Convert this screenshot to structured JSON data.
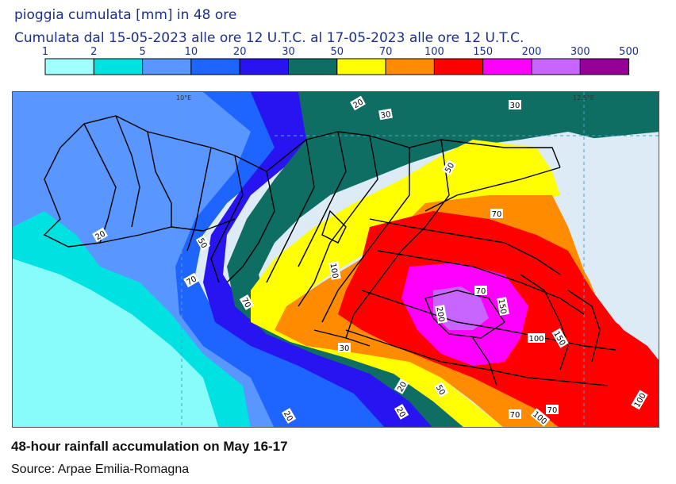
{
  "title": "pioggia cumulata [mm] in 48 ore",
  "subtitle": "Cumulata dal 15-05-2023 alle ore 12 U.T.C. al 17-05-2023 alle ore 12 U.T.C.",
  "legend": {
    "ticks": [
      "1",
      "2",
      "5",
      "10",
      "20",
      "30",
      "50",
      "70",
      "100",
      "150",
      "200",
      "300",
      "500"
    ],
    "colors": [
      "#a0ffff",
      "#00e1e1",
      "#5a96ff",
      "#1e64ff",
      "#2814f0",
      "#0f6e64",
      "#ffff00",
      "#ff8c00",
      "#ff0000",
      "#ff00ff",
      "#c864ff",
      "#960096"
    ]
  },
  "map": {
    "lon_labels": [
      "10°E",
      "12.5°E"
    ],
    "contour_labels": [
      "20",
      "30",
      "30",
      "50",
      "70",
      "70",
      "100",
      "100",
      "150",
      "150",
      "200",
      "70",
      "20",
      "70",
      "50",
      "30",
      "20",
      "50",
      "70",
      "100",
      "20",
      "20",
      "100",
      "70"
    ],
    "colors": {
      "sea": "#dcebf5",
      "border": "#000000"
    }
  },
  "caption": "48-hour rainfall accumulation on May 16-17",
  "source": "Source: Arpae Emilia-Romagna"
}
